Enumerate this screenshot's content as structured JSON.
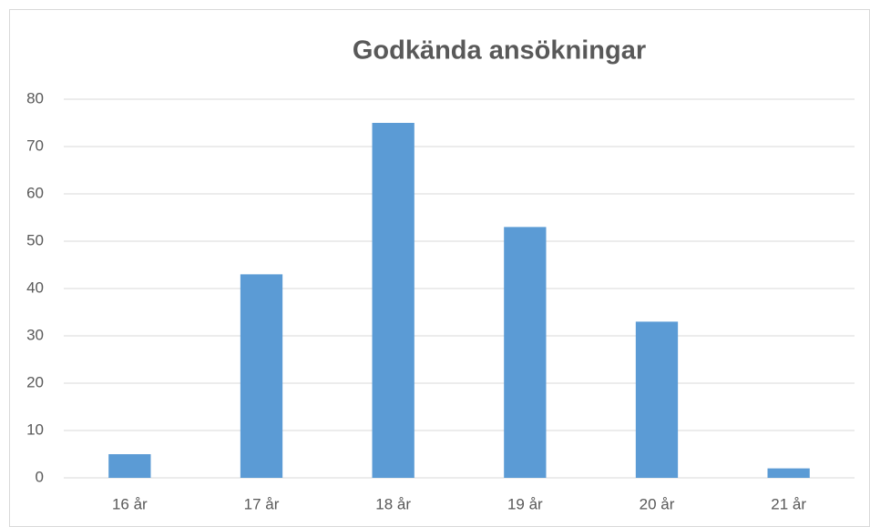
{
  "chart_data": {
    "type": "bar",
    "title": "Godkända ansökningar",
    "categories": [
      "16 år",
      "17 år",
      "18 år",
      "19 år",
      "20 år",
      "21 år"
    ],
    "values": [
      5,
      43,
      75,
      53,
      33,
      2
    ],
    "color": "#5b9bd5",
    "ylim": [
      0,
      80
    ],
    "yticks": [
      0,
      10,
      20,
      30,
      40,
      50,
      60,
      70,
      80
    ],
    "grid": true
  }
}
